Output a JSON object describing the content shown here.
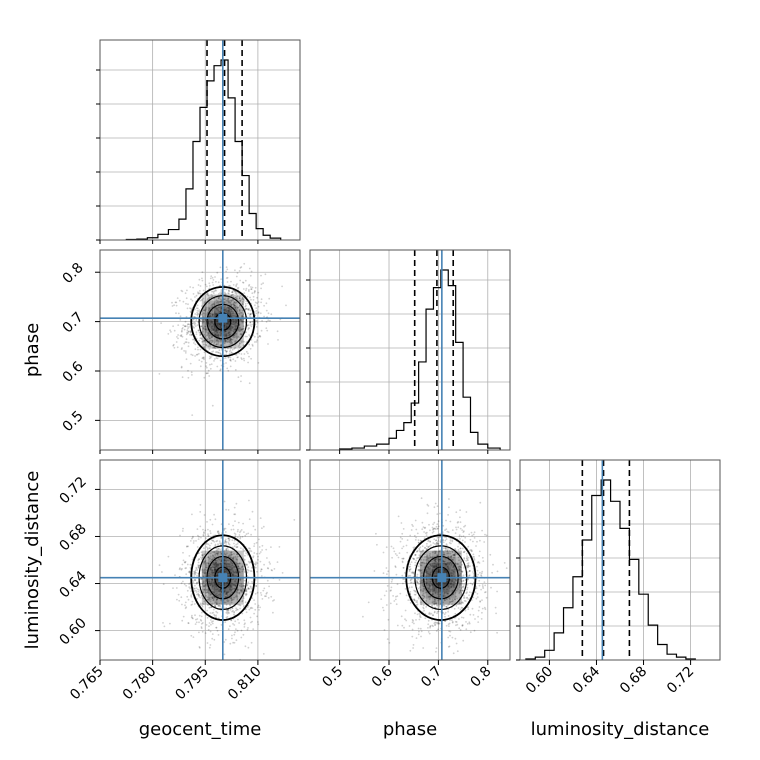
{
  "chart_data": {
    "type": "corner",
    "parameters": [
      {
        "name": "geocent_time",
        "truth": 0.8,
        "range": [
          0.765,
          0.822
        ],
        "ticks": [
          0.765,
          0.78,
          0.795,
          0.81
        ],
        "tick_labels": [
          "0.765",
          "0.780",
          "0.795",
          "0.810"
        ],
        "quantiles": [
          0.7955,
          0.8005,
          0.8055
        ]
      },
      {
        "name": "phase",
        "truth": 0.707,
        "range": [
          0.44,
          0.845
        ],
        "ticks": [
          0.5,
          0.6,
          0.7,
          0.8
        ],
        "tick_labels": [
          "0.5",
          "0.6",
          "0.7",
          "0.8"
        ],
        "y_tick_labels": [
          "0.5",
          "0.6",
          "0.7",
          "0.8"
        ],
        "quantiles": [
          0.652,
          0.697,
          0.73
        ]
      },
      {
        "name": "luminosity_distance",
        "truth": 0.645,
        "range": [
          0.575,
          0.745
        ],
        "ticks": [
          0.6,
          0.64,
          0.68,
          0.72
        ],
        "tick_labels": [
          "0.60",
          "0.64",
          "0.68",
          "0.72"
        ],
        "y_tick_labels": [
          "0.60",
          "0.64",
          "0.68",
          "0.72"
        ],
        "quantiles": [
          0.628,
          0.646,
          0.668
        ]
      }
    ],
    "histograms": {
      "geocent_time": {
        "edges": [
          0.7725,
          0.7755,
          0.7785,
          0.7815,
          0.7845,
          0.7875,
          0.7895,
          0.7915,
          0.7935,
          0.7955,
          0.7975,
          0.7995,
          0.8015,
          0.8035,
          0.8055,
          0.8075,
          0.8095,
          0.8115,
          0.8135,
          0.8165
        ],
        "counts": [
          0.3,
          0.5,
          1.2,
          3.0,
          5.5,
          11,
          27,
          52,
          70,
          84,
          92,
          95,
          75,
          52,
          34,
          14,
          6,
          2.5,
          1
        ]
      },
      "phase": {
        "edges": [
          0.5,
          0.525,
          0.55,
          0.575,
          0.6,
          0.615,
          0.63,
          0.645,
          0.66,
          0.675,
          0.69,
          0.705,
          0.72,
          0.735,
          0.75,
          0.765,
          0.78,
          0.8,
          0.825
        ],
        "counts": [
          0.5,
          1,
          2,
          3,
          6,
          10,
          14,
          24,
          45,
          72,
          83,
          92,
          84,
          55,
          27,
          9,
          3,
          1
        ]
      },
      "luminosity_distance": {
        "edges": [
          0.58,
          0.588,
          0.596,
          0.604,
          0.612,
          0.62,
          0.628,
          0.636,
          0.644,
          0.652,
          0.66,
          0.668,
          0.676,
          0.684,
          0.692,
          0.7,
          0.708,
          0.716,
          0.724
        ],
        "counts": [
          0.5,
          1.5,
          5,
          14,
          27,
          43,
          62,
          85,
          93,
          82,
          68,
          52,
          34,
          18,
          8,
          3,
          1.5,
          0.5
        ]
      }
    },
    "pairs": [
      {
        "x": "geocent_time",
        "y": "phase",
        "center": [
          0.8,
          0.7
        ],
        "sigma": [
          0.0045,
          0.035
        ],
        "rho": 0.1
      },
      {
        "x": "geocent_time",
        "y": "luminosity_distance",
        "center": [
          0.8,
          0.645
        ],
        "sigma": [
          0.0045,
          0.018
        ],
        "rho": 0.0
      },
      {
        "x": "phase",
        "y": "luminosity_distance",
        "center": [
          0.705,
          0.645
        ],
        "sigma": [
          0.035,
          0.018
        ],
        "rho": 0.0
      }
    ],
    "colors": {
      "truth": "#4682b4",
      "contour": "#000000",
      "histogram": "#000000",
      "quantile": "#000000",
      "grid": "#b0b0b0",
      "points": "#000000"
    }
  }
}
